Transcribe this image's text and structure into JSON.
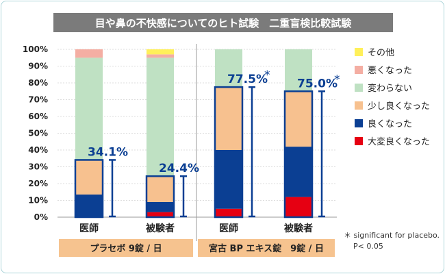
{
  "chart_data": {
    "type": "bar",
    "stacked": true,
    "title": "目や鼻の不快感についてのヒト試験　二重盲検比較試験",
    "ylim": [
      0,
      100
    ],
    "yticks": [
      "0%",
      "10%",
      "20%",
      "30%",
      "40%",
      "50%",
      "60%",
      "70%",
      "80%",
      "90%",
      "100%"
    ],
    "grid": true,
    "legend_position": "right",
    "categories": [
      "医師",
      "被験者",
      "医師",
      "被験者"
    ],
    "groups": [
      {
        "label": "プラセボ 9錠 / 日",
        "categories": [
          0,
          1
        ]
      },
      {
        "label": "宮古 BP エキス錠　9錠 / 日",
        "categories": [
          2,
          3
        ]
      }
    ],
    "series": [
      {
        "name": "大変良くなった",
        "color": "#e60012",
        "values": [
          0,
          3,
          5,
          12
        ]
      },
      {
        "name": "良くなった",
        "color": "#0b3f93",
        "values": [
          13.5,
          6,
          35,
          30
        ]
      },
      {
        "name": "少し良くなった",
        "color": "#f7c18f",
        "values": [
          20.6,
          15.4,
          37.5,
          33
        ]
      },
      {
        "name": "変わらない",
        "color": "#bfe1c3",
        "values": [
          60.9,
          70.6,
          22.5,
          25
        ]
      },
      {
        "name": "悪くなった",
        "color": "#f4aea3",
        "values": [
          5,
          2,
          0,
          0
        ]
      },
      {
        "name": "その他",
        "color": "#fff05a",
        "values": [
          0,
          3,
          0,
          0
        ]
      }
    ],
    "annotations": [
      {
        "category": 0,
        "value": 34.1,
        "text": "34.1%",
        "star": ""
      },
      {
        "category": 1,
        "value": 24.4,
        "text": "24.4%",
        "star": ""
      },
      {
        "category": 2,
        "value": 77.5,
        "text": "77.5%",
        "star": "*"
      },
      {
        "category": 3,
        "value": 75.0,
        "text": "75.0%",
        "star": "*"
      }
    ],
    "footnote": [
      "＊ significant for placebo.",
      "P< 0.05"
    ]
  },
  "colors": {
    "title_bg": "#7b7b7b",
    "title_text": "#ffffff",
    "accent_blue": "#0b3f93",
    "group_bg": "#f6c38f",
    "grid": "#dcdcdc",
    "text": "#222222"
  }
}
